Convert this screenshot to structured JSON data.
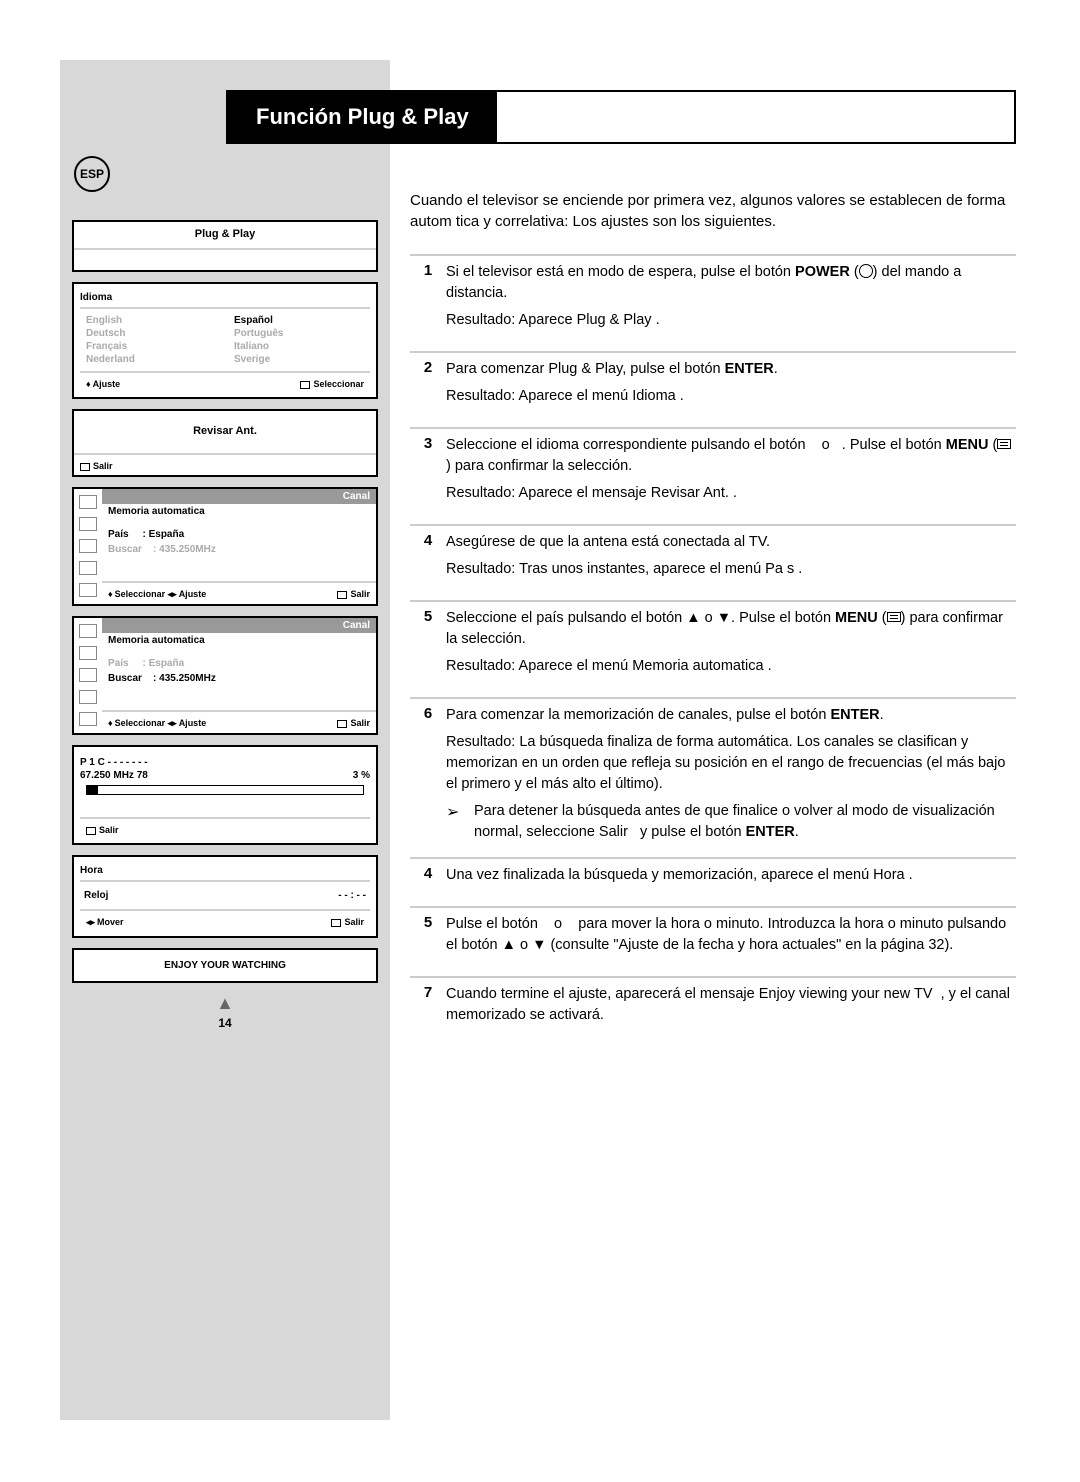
{
  "lang_badge": "ESP",
  "title": "Función Plug & Play",
  "intro": "Cuando el televisor se enciende por primera vez, algunos valores se establecen de forma autom tica y correlativa: Los ajustes son los siguientes.",
  "steps": [
    {
      "n": "1",
      "body": "Si el televisor está en modo de espera, pulse el botón <b>POWER</b> (<span class='circ'></span>) del mando a distancia.",
      "result": "Resultado: Aparece Plug & Play ."
    },
    {
      "n": "2",
      "body": "Para comenzar Plug & Play, pulse el botón <b>ENTER</b>.",
      "result": "Resultado: Aparece el menú Idioma ."
    },
    {
      "n": "3",
      "body": "Seleccione el idioma correspondiente pulsando el botón &nbsp;&nbsp; o &nbsp;&nbsp;. Pulse el botón <b>MENU</b> (<span class='menu-ic'></span>) para confirmar la selección.",
      "result": "Resultado: Aparece el mensaje Revisar Ant. ."
    },
    {
      "n": "4",
      "body": "Asegúrese de que la antena está conectada al TV.",
      "result": "Resultado: Tras unos instantes, aparece el menú Pa s ."
    },
    {
      "n": "5",
      "body": "Seleccione el país pulsando el botón ▲ o ▼. Pulse el botón <b>MENU</b> (<span class='menu-ic'></span>) para confirmar la selección.",
      "result": "Resultado: Aparece el menú Memoria automatica ."
    },
    {
      "n": "6",
      "body": "Para comenzar la memorización de canales, pulse el botón <b>ENTER</b>.",
      "result": "Resultado: La búsqueda finaliza de forma automática. Los canales se clasifican y memorizan en un orden que refleja su posición en el rango de frecuencias (el más bajo el primero y el más alto el último).",
      "sub": "Para detener la búsqueda antes de que finalice o volver al modo de visualización normal, seleccione Salir &nbsp; y pulse el botón <b>ENTER</b>."
    },
    {
      "n": "4",
      "body": "Una vez finalizada la búsqueda y memorización, aparece el menú Hora ."
    },
    {
      "n": "5",
      "body": "Pulse el botón &nbsp;&nbsp; o &nbsp;&nbsp; para mover la hora o minuto. Introduzca la hora o minuto pulsando el botón ▲ o ▼ (consulte \"Ajuste de la fecha y hora actuales\" en la página 32)."
    },
    {
      "n": "7",
      "body": "Cuando termine el ajuste, aparecerá el mensaje Enjoy viewing your new TV &nbsp;, y el canal memorizado se activará."
    }
  ],
  "panels": {
    "plugplay": "Plug  &  Play",
    "idioma_h": "Idioma",
    "langs": [
      [
        "English",
        "dim"
      ],
      [
        "Español",
        "sel"
      ],
      [
        "Deutsch",
        "dim"
      ],
      [
        "Português",
        "dim"
      ],
      [
        "Français",
        "dim"
      ],
      [
        "Italiano",
        "dim"
      ],
      [
        "Nederland",
        "dim"
      ],
      [
        "Sverige",
        "dim"
      ]
    ],
    "ajuste": "Ajuste",
    "seleccionar_foot": "Seleccionar",
    "revisar": "Revisar Ant.",
    "salir": "Salir",
    "canal": "Canal",
    "mem_auto": "Memoria automatica",
    "pais_lbl": "País",
    "pais_val": ": España",
    "buscar_lbl": "Buscar",
    "buscar_val": ": 435.250MHz",
    "seleccionar": "Seleccionar",
    "prog_ch": "P 1 C - -   - - - - -",
    "prog_freq": "67.250 MHz  78",
    "prog_pct": "3 %",
    "hora": "Hora",
    "reloj": "Reloj",
    "reloj_val": "- - : - -",
    "mover": "Mover",
    "enjoy": "ENJOY YOUR WATCHING"
  },
  "page_num": "14"
}
